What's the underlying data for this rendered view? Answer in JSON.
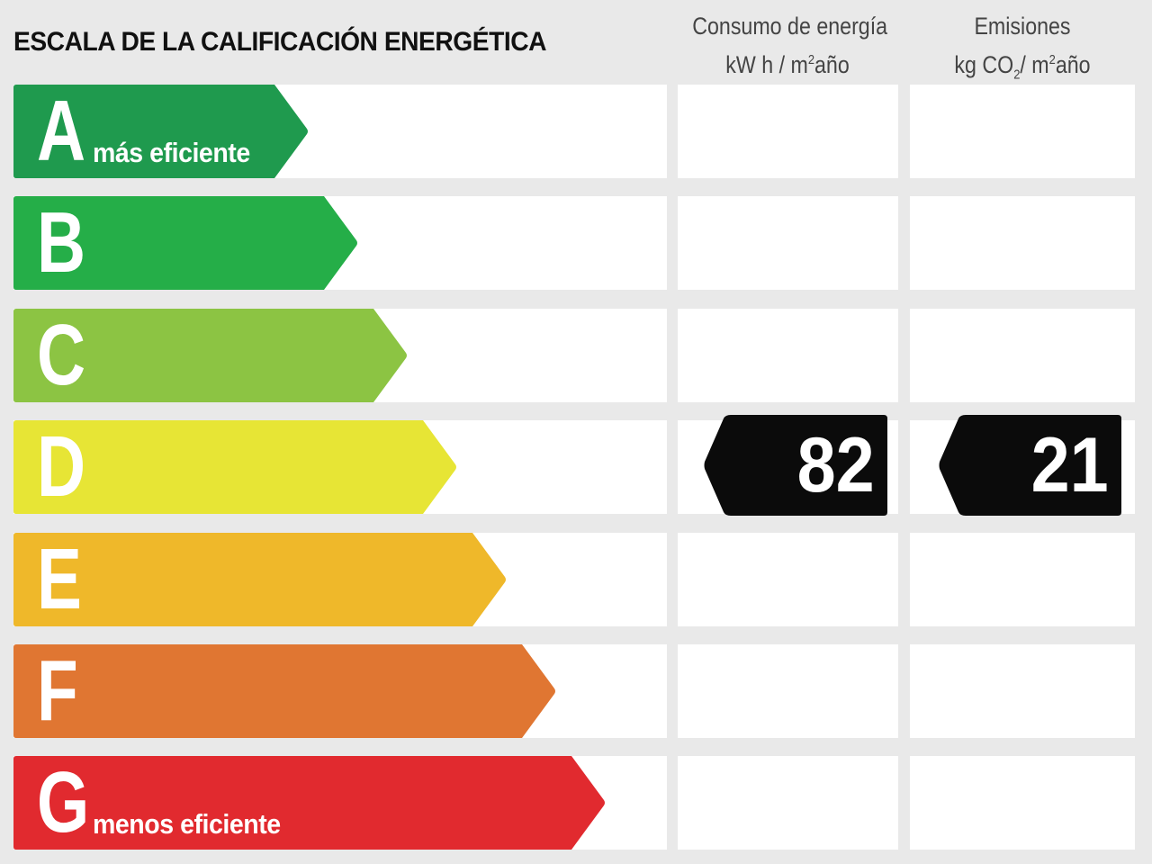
{
  "title": "ESCALA DE LA CALIFICACIÓN ENERGÉTICA",
  "columns": {
    "consumo": {
      "line1": "Consumo de energía",
      "line2_pre": "kW h / m",
      "line2_sup": "2",
      "line2_post": "año"
    },
    "emisiones": {
      "line1": "Emisiones",
      "line2_pre": "kg CO",
      "line2_sub": "2",
      "line2_mid": "/ m",
      "line2_sup": "2",
      "line2_post": "año"
    }
  },
  "ratings": [
    {
      "letter": "A",
      "label": "más eficiente",
      "color": "#1f9a4e"
    },
    {
      "letter": "B",
      "label": "",
      "color": "#25ae48"
    },
    {
      "letter": "C",
      "label": "",
      "color": "#8cc443"
    },
    {
      "letter": "D",
      "label": "",
      "color": "#e7e535"
    },
    {
      "letter": "E",
      "label": "",
      "color": "#efb82a"
    },
    {
      "letter": "F",
      "label": "",
      "color": "#e07632"
    },
    {
      "letter": "G",
      "label": "menos eficiente",
      "color": "#e12a2f"
    }
  ],
  "current": {
    "rating": "D",
    "consumo_value": "82",
    "emisiones_value": "21"
  }
}
